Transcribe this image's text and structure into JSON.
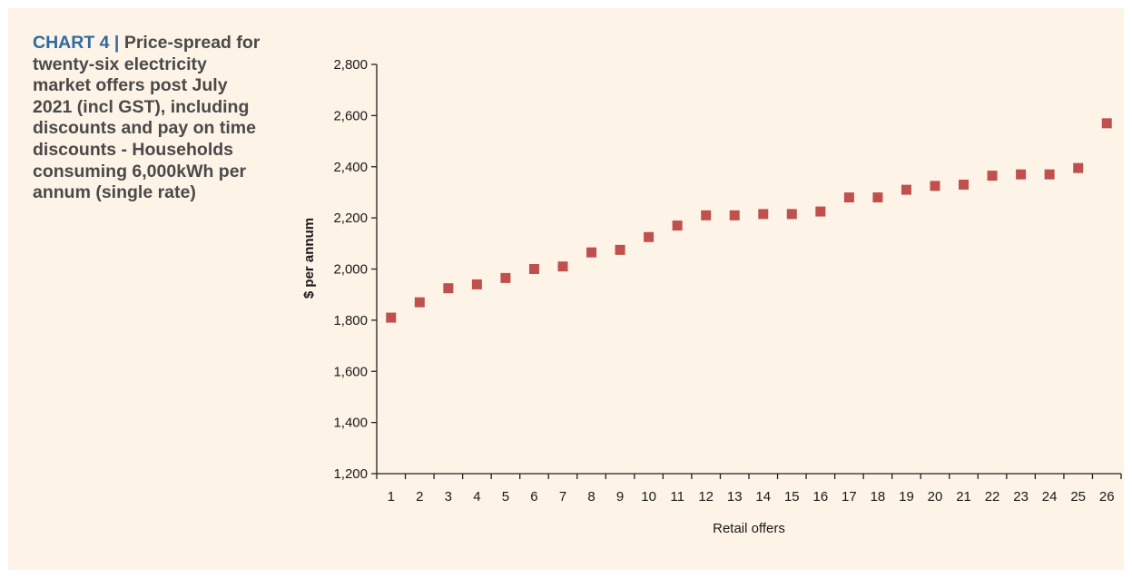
{
  "caption": {
    "chart_number": "CHART 4",
    "separator": " | ",
    "text": "Price-spread for twenty-six electricity market offers post July 2021 (incl GST), including discounts and pay on time discounts - Households consuming 6,000kWh per annum (single rate)"
  },
  "chart_data": {
    "type": "scatter",
    "title": "",
    "xlabel": "Retail offers",
    "ylabel": "$ per annum",
    "ylim": [
      1200,
      2800
    ],
    "ytick_step": 200,
    "ytick_labels": [
      "1,200",
      "1,400",
      "1,600",
      "1,800",
      "2,000",
      "2,200",
      "2,400",
      "2,600",
      "2,800"
    ],
    "categories": [
      "1",
      "2",
      "3",
      "4",
      "5",
      "6",
      "7",
      "8",
      "9",
      "10",
      "11",
      "12",
      "13",
      "14",
      "15",
      "16",
      "17",
      "18",
      "19",
      "20",
      "21",
      "22",
      "23",
      "24",
      "25",
      "26"
    ],
    "values": [
      1810,
      1870,
      1925,
      1940,
      1965,
      2000,
      2010,
      2065,
      2075,
      2125,
      2170,
      2210,
      2210,
      2215,
      2215,
      2225,
      2280,
      2280,
      2310,
      2325,
      2330,
      2365,
      2370,
      2370,
      2395,
      2570
    ],
    "grid": false,
    "legend": "none",
    "marker_color": "#c0504d"
  }
}
